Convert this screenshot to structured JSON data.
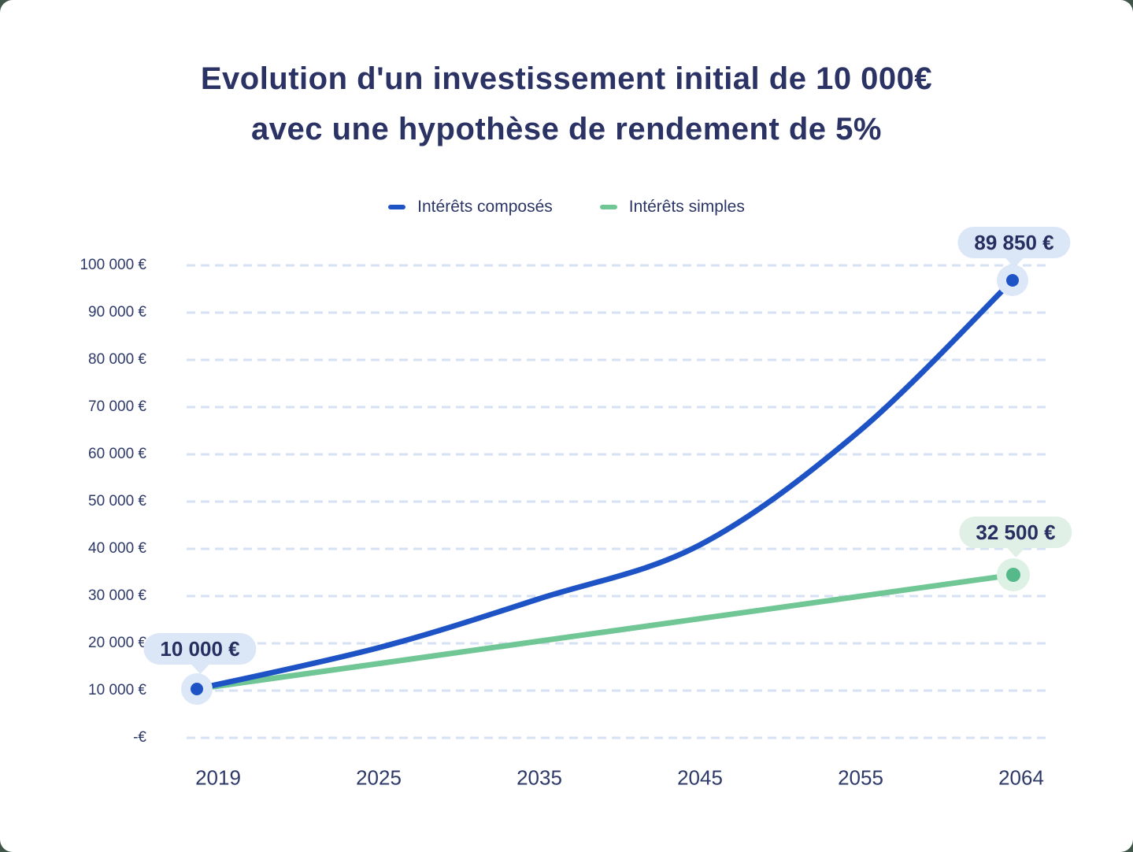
{
  "title": {
    "line1": "Evolution d'un investissement initial de 10 000€",
    "line2": "avec une hypothèse de rendement de 5%"
  },
  "legend": [
    {
      "label": "Intérêts composés",
      "color": "#1e53c5"
    },
    {
      "label": "Intérêts simples",
      "color": "#70c795"
    }
  ],
  "colors": {
    "title_text": "#2b3264",
    "axis_text": "#2d3968",
    "gridline": "#d6e1f4",
    "compound_line": "#1e53c5",
    "compound_halo": "#dce8f8",
    "simple_line": "#70c795",
    "simple_dot": "#55b98a",
    "simple_halo": "#def1e5",
    "callout_blue_bg": "#dbe7f7",
    "callout_green_bg": "#e0f0e7",
    "card_bg": "#ffffff"
  },
  "chart_data": {
    "type": "line",
    "title": "Evolution d'un investissement initial de 10 000€ avec une hypothèse de rendement de 5%",
    "initial_investment": 10000,
    "rate_percent": 5,
    "x_labels": [
      "2019",
      "2025",
      "2035",
      "2045",
      "2055",
      "2064"
    ],
    "y_tick_labels": [
      "100 000 €",
      "90 000 €",
      "80 000 €",
      "70 000 €",
      "60 000 €",
      "50 000 €",
      "40 000 €",
      "30 000 €",
      "20 000 €",
      "10 000 €",
      "-€"
    ],
    "ylim": [
      0,
      100000
    ],
    "grid": "dashed horizontal",
    "legend_position": "top-center",
    "series": [
      {
        "name": "Intérêts composés",
        "color": "#1e53c5",
        "x": [
          2019,
          2025,
          2035,
          2045,
          2055,
          2064
        ],
        "values": [
          10000,
          13401,
          21829,
          35557,
          57918,
          89850
        ]
      },
      {
        "name": "Intérêts simples",
        "color": "#70c795",
        "x": [
          2019,
          2025,
          2035,
          2045,
          2055,
          2064
        ],
        "values": [
          10000,
          13000,
          18000,
          23000,
          28000,
          32500
        ]
      }
    ],
    "annotations": [
      {
        "label": "10 000 €",
        "series": "Intérêts composés",
        "year": 2019,
        "value": 10000
      },
      {
        "label": "89 850 €",
        "series": "Intérêts composés",
        "year": 2064,
        "value": 89850
      },
      {
        "label": "32 500 €",
        "series": "Intérêts simples",
        "year": 2064,
        "value": 32500
      }
    ]
  }
}
